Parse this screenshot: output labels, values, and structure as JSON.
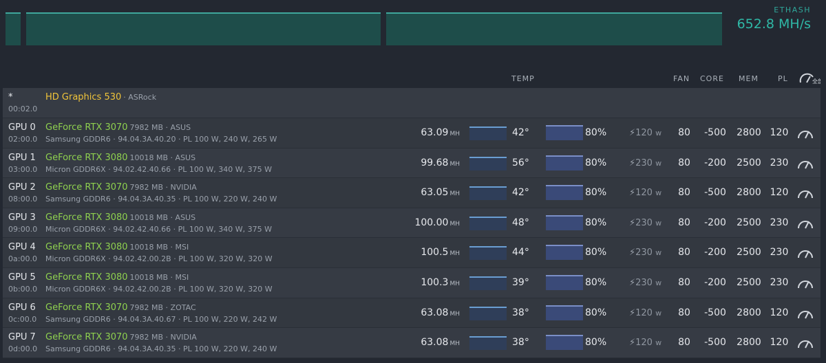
{
  "summary": {
    "algorithm": "ETHASH",
    "hashrate": "652.8 MH/s"
  },
  "headers": {
    "temp": "TEMP",
    "fan": "FAN",
    "core": "CORE",
    "mem": "MEM",
    "pl": "PL",
    "gauge_label": "全部"
  },
  "igpu": {
    "marker": "*",
    "bus": "00:02.0",
    "name": "HD Graphics 530",
    "vendor": "· ASRock"
  },
  "colors": {
    "accent": "#2fb8a6",
    "gpu_name": "#8fd14f",
    "igpu_name": "#f0c43a",
    "spark": "#6a9ed2",
    "fan_bar": "#7b8fc7"
  },
  "gpus": [
    {
      "id": "GPU 0",
      "bus": "02:00.0",
      "name": "GeForce RTX 3070",
      "mem": "7982 MB · ASUS",
      "sub": "Samsung GDDR6 · 94.04.3A.40.20 · PL 100 W, 240 W, 265 W",
      "hashrate": "63.09",
      "unit": "MH",
      "temp": "42°",
      "fan_pct": "80%",
      "power": "120",
      "power_unit": "w",
      "fan": "80",
      "core": "-500",
      "memclk": "2800",
      "pl": "120"
    },
    {
      "id": "GPU 1",
      "bus": "03:00.0",
      "name": "GeForce RTX 3080",
      "mem": "10018 MB · ASUS",
      "sub": "Micron GDDR6X · 94.02.42.40.66 · PL 100 W, 340 W, 375 W",
      "hashrate": "99.68",
      "unit": "MH",
      "temp": "56°",
      "fan_pct": "80%",
      "power": "230",
      "power_unit": "w",
      "fan": "80",
      "core": "-200",
      "memclk": "2500",
      "pl": "230"
    },
    {
      "id": "GPU 2",
      "bus": "08:00.0",
      "name": "GeForce RTX 3070",
      "mem": "7982 MB · NVIDIA",
      "sub": "Samsung GDDR6 · 94.04.3A.40.35 · PL 100 W, 220 W, 240 W",
      "hashrate": "63.05",
      "unit": "MH",
      "temp": "42°",
      "fan_pct": "80%",
      "power": "120",
      "power_unit": "w",
      "fan": "80",
      "core": "-500",
      "memclk": "2800",
      "pl": "120"
    },
    {
      "id": "GPU 3",
      "bus": "09:00.0",
      "name": "GeForce RTX 3080",
      "mem": "10018 MB · ASUS",
      "sub": "Micron GDDR6X · 94.02.42.40.66 · PL 100 W, 340 W, 375 W",
      "hashrate": "100.00",
      "unit": "MH",
      "temp": "48°",
      "fan_pct": "80%",
      "power": "230",
      "power_unit": "w",
      "fan": "80",
      "core": "-200",
      "memclk": "2500",
      "pl": "230"
    },
    {
      "id": "GPU 4",
      "bus": "0a:00.0",
      "name": "GeForce RTX 3080",
      "mem": "10018 MB · MSI",
      "sub": "Micron GDDR6X · 94.02.42.00.2B · PL 100 W, 320 W, 320 W",
      "hashrate": "100.5",
      "unit": "MH",
      "temp": "44°",
      "fan_pct": "80%",
      "power": "230",
      "power_unit": "w",
      "fan": "80",
      "core": "-200",
      "memclk": "2500",
      "pl": "230"
    },
    {
      "id": "GPU 5",
      "bus": "0b:00.0",
      "name": "GeForce RTX 3080",
      "mem": "10018 MB · MSI",
      "sub": "Micron GDDR6X · 94.02.42.00.2B · PL 100 W, 320 W, 320 W",
      "hashrate": "100.3",
      "unit": "MH",
      "temp": "39°",
      "fan_pct": "80%",
      "power": "230",
      "power_unit": "w",
      "fan": "80",
      "core": "-200",
      "memclk": "2500",
      "pl": "230"
    },
    {
      "id": "GPU 6",
      "bus": "0c:00.0",
      "name": "GeForce RTX 3070",
      "mem": "7982 MB · ZOTAC",
      "sub": "Samsung GDDR6 · 94.04.3A.40.67 · PL 100 W, 220 W, 242 W",
      "hashrate": "63.08",
      "unit": "MH",
      "temp": "38°",
      "fan_pct": "80%",
      "power": "120",
      "power_unit": "w",
      "fan": "80",
      "core": "-500",
      "memclk": "2800",
      "pl": "120"
    },
    {
      "id": "GPU 7",
      "bus": "0d:00.0",
      "name": "GeForce RTX 3070",
      "mem": "7982 MB · NVIDIA",
      "sub": "Samsung GDDR6 · 94.04.3A.40.35 · PL 100 W, 220 W, 240 W",
      "hashrate": "63.08",
      "unit": "MH",
      "temp": "38°",
      "fan_pct": "80%",
      "power": "120",
      "power_unit": "w",
      "fan": "80",
      "core": "-500",
      "memclk": "2800",
      "pl": "120"
    }
  ]
}
